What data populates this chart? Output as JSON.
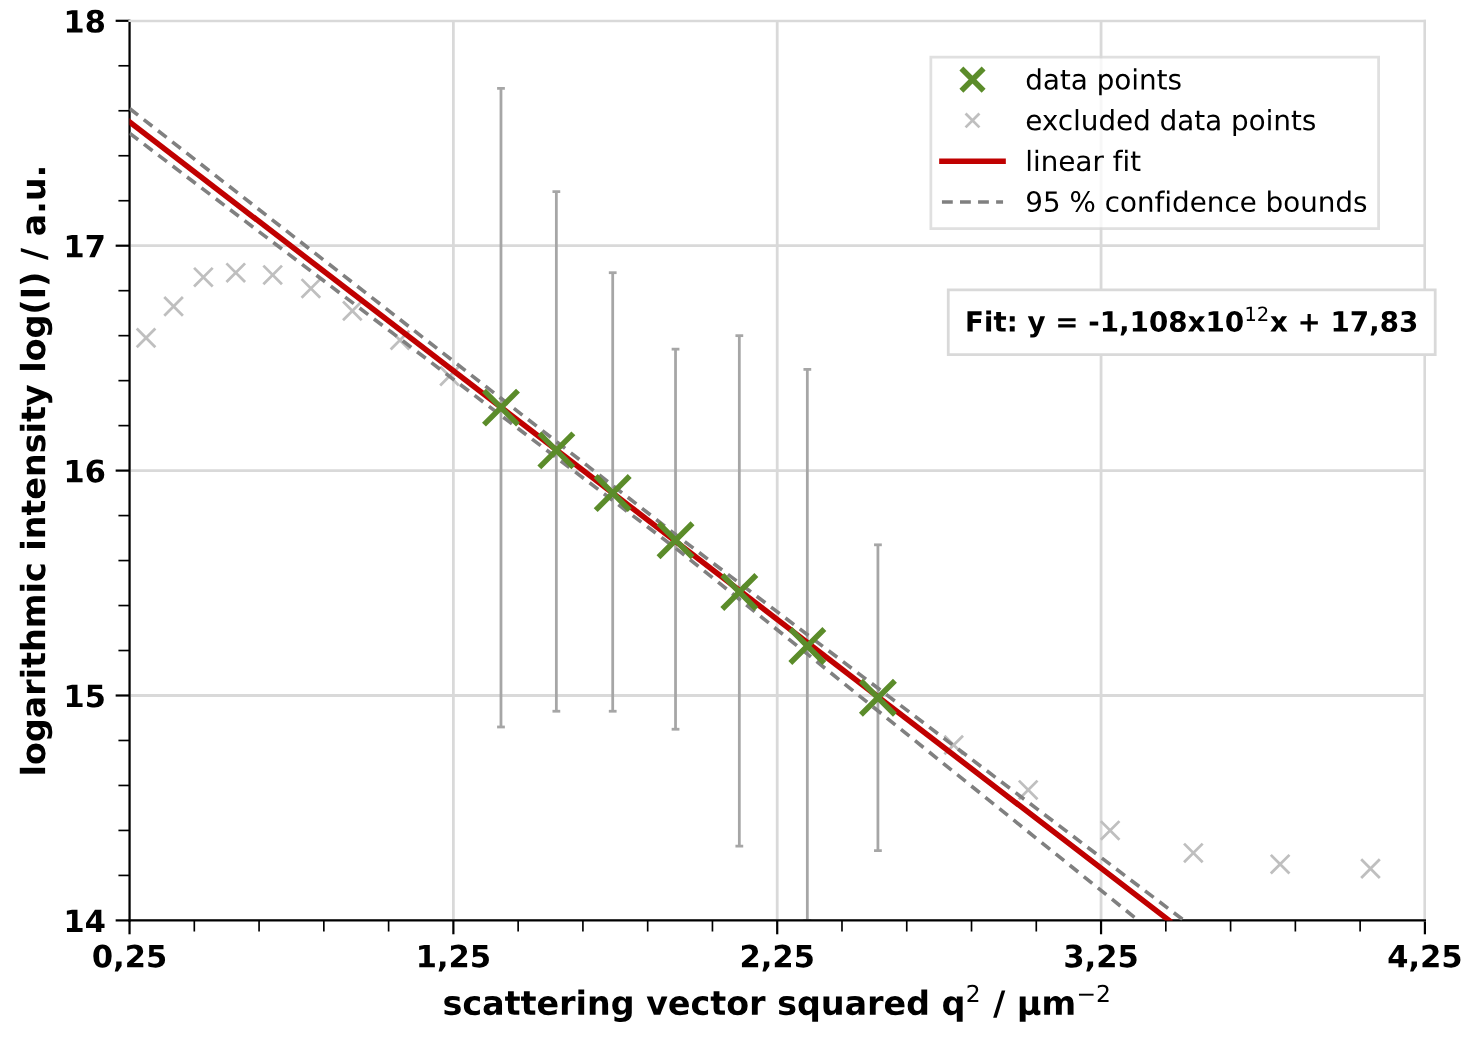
{
  "chart_data": {
    "type": "scatter",
    "xlabel": "scattering vector squared q$^{2}$ / µm$^{−2}$",
    "ylabel": "logarithmic intensity log(I) / a.u.",
    "xlim": [
      0.25,
      4.25
    ],
    "ylim": [
      14,
      18
    ],
    "xticks": [
      {
        "value": 0.25,
        "label": "0,25"
      },
      {
        "value": 0.45,
        "label": null
      },
      {
        "value": 0.65,
        "label": null
      },
      {
        "value": 0.85,
        "label": null
      },
      {
        "value": 1.05,
        "label": null
      },
      {
        "value": 1.25,
        "label": "1,25"
      },
      {
        "value": 1.45,
        "label": null
      },
      {
        "value": 1.65,
        "label": null
      },
      {
        "value": 1.85,
        "label": null
      },
      {
        "value": 2.05,
        "label": null
      },
      {
        "value": 2.25,
        "label": "2,25"
      },
      {
        "value": 2.45,
        "label": null
      },
      {
        "value": 2.65,
        "label": null
      },
      {
        "value": 2.85,
        "label": null
      },
      {
        "value": 3.05,
        "label": null
      },
      {
        "value": 3.25,
        "label": "3,25"
      },
      {
        "value": 3.45,
        "label": null
      },
      {
        "value": 3.65,
        "label": null
      },
      {
        "value": 3.85,
        "label": null
      },
      {
        "value": 4.05,
        "label": null
      },
      {
        "value": 4.25,
        "label": "4,25"
      }
    ],
    "yticks": [
      14,
      {
        "value": 14.2,
        "label": null
      },
      {
        "value": 14.4,
        "label": null
      },
      {
        "value": 14.6,
        "label": null
      },
      {
        "value": 14.8,
        "label": null
      },
      15,
      {
        "value": 15.2,
        "label": null
      },
      {
        "value": 15.4,
        "label": null
      },
      {
        "value": 15.6,
        "label": null
      },
      {
        "value": 15.8,
        "label": null
      },
      16,
      {
        "value": 16.2,
        "label": null
      },
      {
        "value": 16.4,
        "label": null
      },
      {
        "value": 16.6,
        "label": null
      },
      {
        "value": 16.8,
        "label": null
      },
      17,
      {
        "value": 17.2,
        "label": null
      },
      {
        "value": 17.4,
        "label": null
      },
      {
        "value": 17.6,
        "label": null
      },
      {
        "value": 17.8,
        "label": null
      },
      18
    ],
    "grid": true,
    "legend": "top right",
    "annotations": [
      "Fit: y = -1,108x10$^{12}$x + 17,83"
    ],
    "series": [
      {
        "name": "data points",
        "marker": "cross",
        "color": "#5b8c2a",
        "x": [
          1.397,
          1.568,
          1.742,
          1.936,
          2.133,
          2.343,
          2.561
        ],
        "values": [
          16.28,
          16.09,
          15.9,
          15.69,
          15.46,
          15.22,
          14.99
        ],
        "errors": [
          [
            14.86,
            17.7
          ],
          [
            14.93,
            17.24
          ],
          [
            14.93,
            16.88
          ],
          [
            14.85,
            16.54
          ],
          [
            14.33,
            16.6
          ],
          [
            14.0,
            16.45
          ],
          [
            14.31,
            15.67
          ]
        ]
      },
      {
        "name": "excluded data points",
        "marker": "cross",
        "color": "#bfbfbf",
        "x": [
          0.301,
          0.386,
          0.478,
          0.578,
          0.692,
          0.81,
          0.938,
          1.085,
          1.238,
          2.795,
          3.025,
          3.278,
          3.535,
          3.803,
          4.082
        ],
        "values": [
          16.59,
          16.73,
          16.86,
          16.88,
          16.87,
          16.81,
          16.71,
          16.58,
          16.42,
          14.78,
          14.58,
          14.4,
          14.3,
          14.25,
          14.23
        ]
      },
      {
        "name": "linear fit",
        "type": "line",
        "line_style": "solid",
        "color": "#c00000",
        "x": [
          0.25,
          3.46
        ],
        "values": [
          17.55,
          14.0
        ]
      },
      {
        "name": "95 % confidence bounds",
        "type": "line",
        "line_style": "dashed",
        "color": "#808080",
        "x": [
          0.25,
          1.95,
          3.506
        ],
        "values": [
          17.61,
          15.7,
          14.0
        ]
      },
      {
        "type": "line",
        "line_style": "dashed",
        "color": "#808080",
        "x": [
          0.25,
          1.95,
          3.365
        ],
        "values": [
          17.5,
          15.64,
          14.0
        ]
      }
    ]
  }
}
